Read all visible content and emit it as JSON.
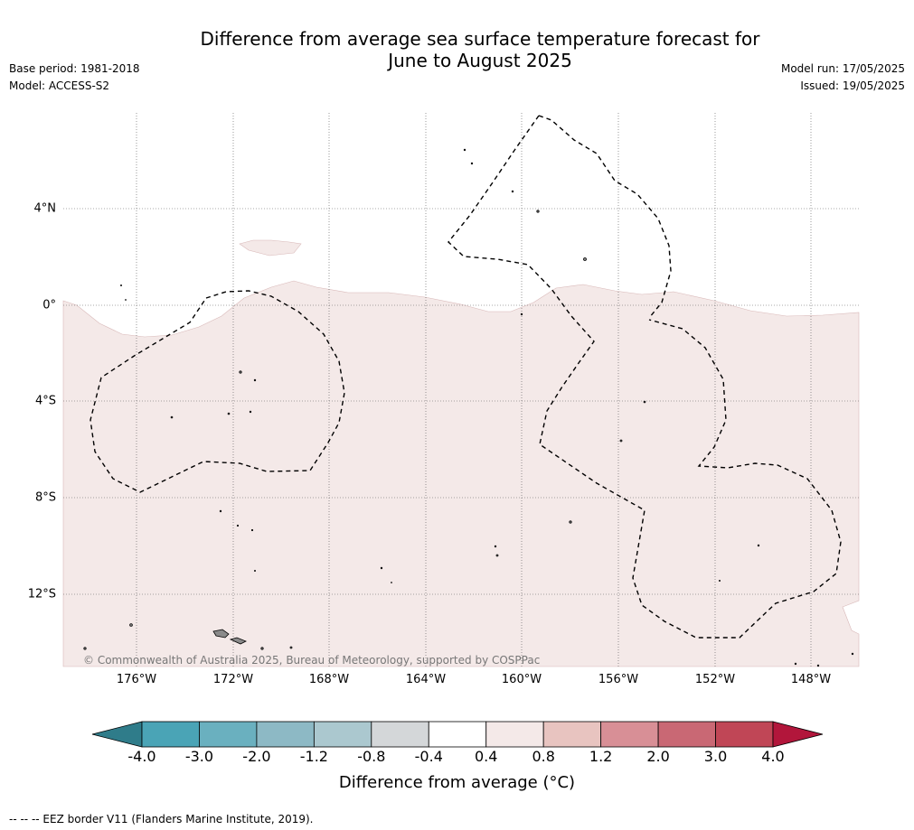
{
  "title_line1": "Difference from average sea surface temperature forecast for",
  "title_line2": "June to August 2025",
  "base_period": "Base period: 1981-2018",
  "model": "Model: ACCESS-S2",
  "model_run": "Model run: 17/05/2025",
  "issued": "Issued: 19/05/2025",
  "copyright": "© Commonwealth of Australia 2025, Bureau of Meteorology, supported by COSPPac",
  "lon_labels": [
    "176°W",
    "172°W",
    "168°W",
    "164°W",
    "160°W",
    "156°W",
    "152°W",
    "148°W"
  ],
  "lat_labels": [
    "4°N",
    "0°",
    "4°S",
    "8°S",
    "12°S"
  ],
  "colorbar": {
    "ticks": [
      "-4.0",
      "-3.0",
      "-2.0",
      "-1.2",
      "-0.8",
      "-0.4",
      "0.4",
      "0.8",
      "1.2",
      "2.0",
      "3.0",
      "4.0"
    ],
    "colors": [
      "#2f7c8a",
      "#4aa4b6",
      "#6ab0bf",
      "#8db9c5",
      "#abc8cf",
      "#d4d7d9",
      "#ffffff",
      "#f4e9e8",
      "#e8c4c0",
      "#d88f96",
      "#c96874",
      "#c04656",
      "#b2163b"
    ],
    "label": "Difference from average (°C)"
  },
  "map_colors": {
    "anomaly_fill": "#f4e9e8",
    "land": "#8a8a8a"
  },
  "footer": "-- -- -- EEZ border V11 (Flanders Marine Institute, 2019)."
}
